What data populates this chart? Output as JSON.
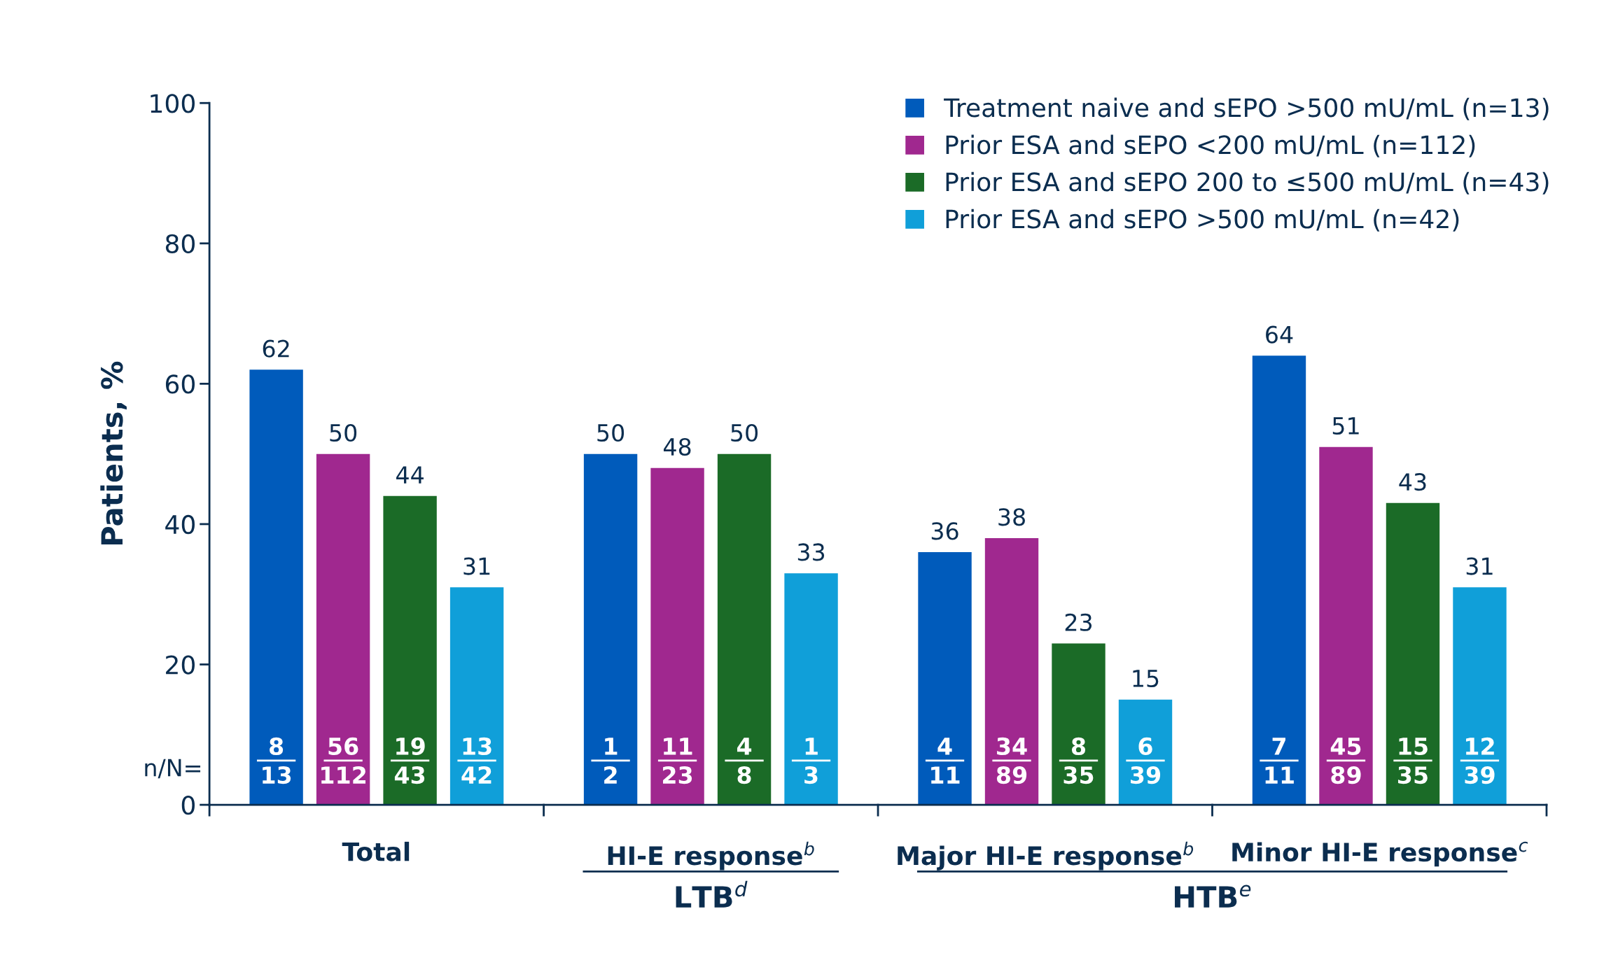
{
  "chart_data": {
    "type": "bar",
    "ylabel": "Patients, %",
    "categories": [
      "Total",
      "HI-E response$^{b}$",
      "Major HI-E response$^{b}$",
      "Minor HI-E response$^{c}$"
    ],
    "series": [
      {
        "name": "Treatment naive and sEPO >500 mU/mL (n=13)",
        "color": "#005bbb",
        "values": [
          62,
          50,
          36,
          64
        ]
      },
      {
        "name": "Prior ESA and sEPO <200 mU/mL (n=112)",
        "color": "#a0288f",
        "values": [
          50,
          48,
          38,
          51
        ]
      },
      {
        "name": "Prior ESA and sEPO 200 to ≤500 mU/mL (n=43)",
        "color": "#1b6b27",
        "values": [
          44,
          50,
          23,
          43
        ]
      },
      {
        "name": "Prior ESA and sEPO >500 mU/mL (n=42)",
        "color": "#109fd9",
        "values": [
          31,
          33,
          15,
          31
        ]
      }
    ],
    "ylim": [
      0,
      100
    ],
    "yticks": [
      0,
      20,
      40,
      60,
      80,
      100
    ],
    "data_labels": true,
    "legend": "top right",
    "grid": false,
    "annotations": [
      "n/N=",
      "8\n13",
      "56\n112",
      "19\n43",
      "13\n42",
      "1\n2",
      "11\n23",
      "4\n8",
      "1\n3",
      "4\n11",
      "34\n89",
      "8\n35",
      "6\n39",
      "7\n11",
      "45\n89",
      "15\n35",
      "12\n39",
      "LTB$^{d}$",
      "HTB$^{e}$"
    ]
  }
}
